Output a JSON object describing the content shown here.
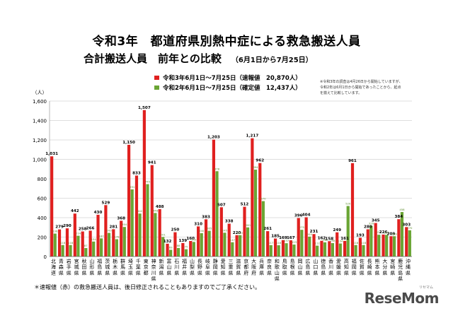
{
  "title": "令和3年　都道府県別熱中症による救急搬送人員",
  "subtitle": "合計搬送人員　前年との比較",
  "period": "（6月1日から7月25日）",
  "footnote": "＊速報値（赤）の救急搬送人員は、後日修正されることもありますのでご了承ください。",
  "brand": "ReseMom",
  "brand_sub": "リセマム",
  "colors": {
    "current": "#e0201f",
    "previous": "#6aa534",
    "grid": "#bfbfbf"
  },
  "chart_data": {
    "type": "bar",
    "ylabel": "（人）",
    "ylim": [
      0,
      1600
    ],
    "yticks": [
      "0",
      "200",
      "400",
      "600",
      "800",
      "1,000",
      "1,200",
      "1,400",
      "1,600"
    ],
    "legend": [
      {
        "label": "令和3年6月1日～7月25日（速報値　20,870人）"
      },
      {
        "label": "令和2年6月1日～7月25日（確定値　12,437人）"
      }
    ],
    "note": [
      "※令和3年の調査は4月26日から開始していますが、",
      "令和2年は6月1日から開始であったことから、起点",
      "を揃えて比較しています。"
    ],
    "categories": [
      "北海道",
      "青森県",
      "岩手県",
      "宮城県",
      "秋田県",
      "山形県",
      "福島県",
      "茨城県",
      "栃木県",
      "群馬県",
      "埼玉県",
      "千葉県",
      "東京都",
      "神奈川県",
      "新潟県",
      "富山県",
      "石川県",
      "福井県",
      "山梨県",
      "長野県",
      "岐阜県",
      "静岡県",
      "愛知県",
      "三重県",
      "滋賀県",
      "京都府",
      "大阪府",
      "兵庫県",
      "奈良県",
      "和歌山県",
      "鳥取県",
      "島根県",
      "岡山県",
      "広島県",
      "山口県",
      "徳島県",
      "香川県",
      "愛媛県",
      "高知県",
      "福岡県",
      "佐賀県",
      "長崎県",
      "熊本県",
      "大分県",
      "宮崎県",
      "鹿児島県",
      "沖縄県"
    ],
    "series": [
      {
        "name": "令和3年6月1日～7月25日（速報値　20,870人）",
        "values": [
          1031,
          279,
          290,
          442,
          258,
          266,
          430,
          529,
          281,
          368,
          1150,
          833,
          1507,
          941,
          488,
          132,
          250,
          139,
          160,
          310,
          383,
          1203,
          507,
          338,
          220,
          512,
          1217,
          962,
          261,
          185,
          169,
          167,
          396,
          404,
          231,
          162,
          158,
          249,
          161,
          961,
          193,
          280,
          345,
          226,
          209,
          384,
          303
        ]
      },
      {
        "name": "令和2年6月1日～7月25日（確定値　12,437人）",
        "values": [
          236,
          118,
          118,
          214,
          87,
          154,
          187,
          243,
          178,
          304,
          691,
          442,
          745,
          448,
          201,
          69,
          88,
          75,
          150,
          240,
          265,
          878,
          245,
          147,
          220,
          300,
          894,
          570,
          117,
          116,
          137,
          123,
          275,
          205,
          112,
          146,
          138,
          134,
          520,
          118,
          118,
          316,
          224,
          223,
          209,
          458,
          270
        ]
      }
    ],
    "value_labels_current": [
      "1,031",
      "279",
      "290",
      "442",
      "258",
      "266",
      "430",
      "529",
      "281",
      "368",
      "1,150",
      "833",
      "1,507",
      "941",
      "488",
      "132",
      "250",
      "139",
      "160",
      "310",
      "383",
      "1,203",
      "507",
      "338",
      "220",
      "512",
      "1,217",
      "962",
      "261",
      "185",
      "169",
      "167",
      "396",
      "404",
      "231",
      "162",
      "158",
      "249",
      "161",
      "961",
      "193",
      "280",
      "345",
      "226",
      "209",
      "384",
      "303"
    ],
    "value_labels_previous": [
      "236",
      "118",
      "118",
      "214",
      "87",
      "154",
      "187",
      "243",
      "178",
      "304",
      "691",
      "442",
      "745",
      "448",
      "201",
      "69",
      "88",
      "75",
      "150",
      "240",
      "265",
      "878",
      "245",
      "147",
      "220",
      "300",
      "894",
      "570",
      "117",
      "116",
      "137",
      "123",
      "275",
      "205",
      "112",
      "146",
      "138",
      "134",
      "520",
      "118",
      "118",
      "316",
      "224",
      "223",
      "209",
      "458",
      "270"
    ]
  }
}
